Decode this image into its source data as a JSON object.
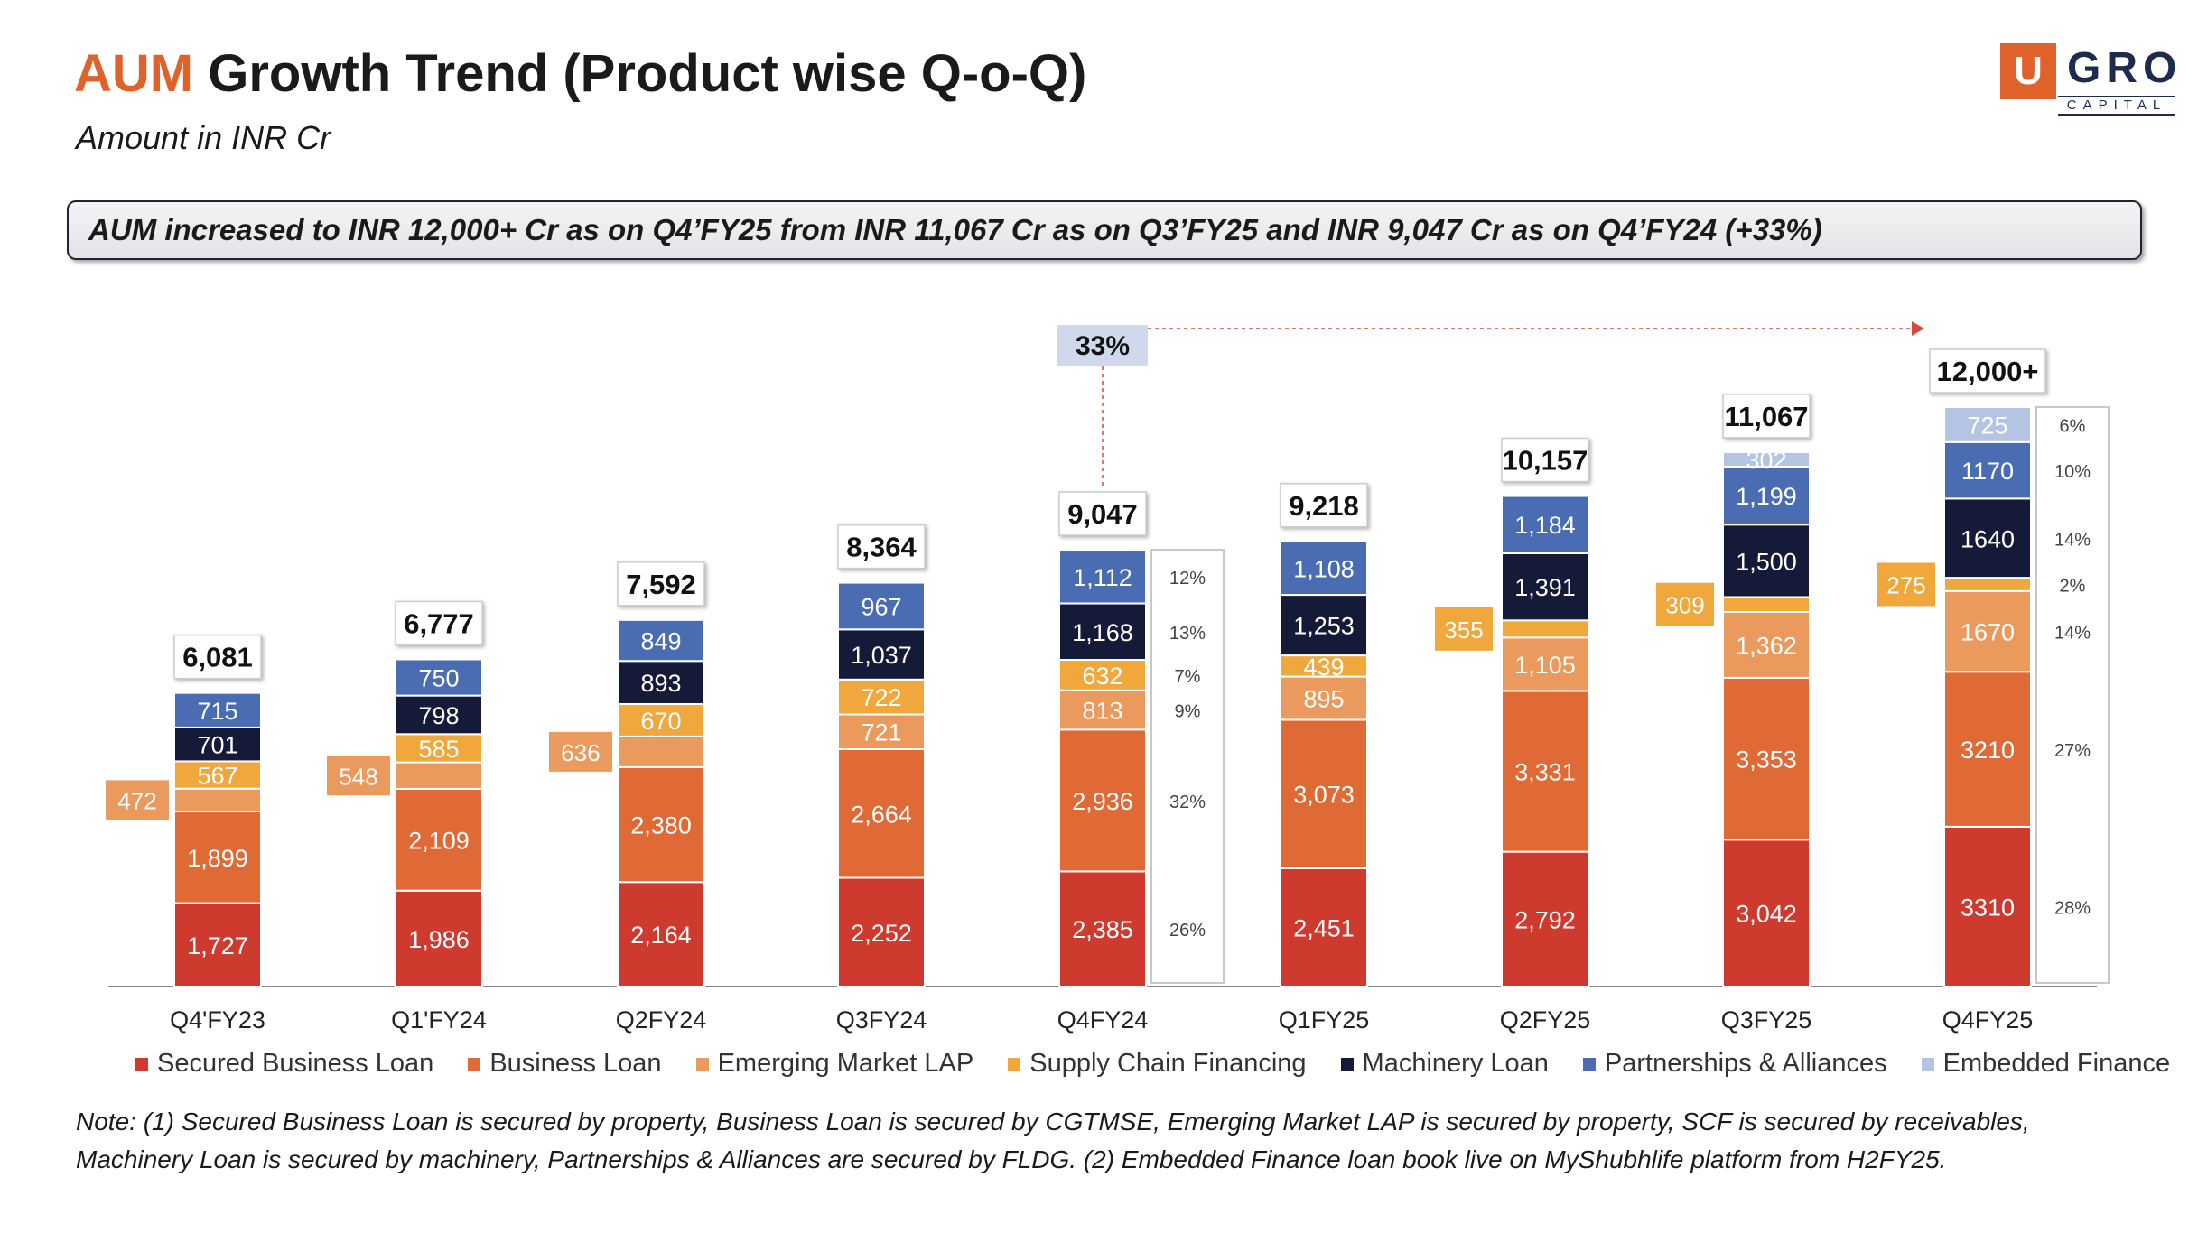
{
  "header": {
    "title_accent": "AUM",
    "title_rest": "Growth Trend (Product wise Q-o-Q)",
    "subtitle": "Amount in INR Cr",
    "logo_letter": "U",
    "logo_word": "GRO",
    "logo_sub": "CAPITAL",
    "highlight": "AUM increased to INR 12,000+ Cr as on Q4’FY25 from INR 11,067 Cr as on Q3’FY25 and INR 9,047 Cr as on Q4’FY24 (+33%)"
  },
  "note": "Note: (1) Secured Business Loan is secured by property, Business Loan is secured by CGTMSE, Emerging Market LAP is secured by property, SCF is secured by receivables, Machinery Loan is secured by machinery, Partnerships & Alliances are secured by FLDG. (2) Embedded Finance loan book live on MyShubhlife platform from H2FY25.",
  "colors": {
    "secured_business_loan": "#cf3a2f",
    "business_loan": "#e06a36",
    "emerging_market_lap": "#eb9a5e",
    "supply_chain_financing": "#f0a83c",
    "machinery_loan": "#151a38",
    "partnerships_alliances": "#4a6cb3",
    "embedded_finance": "#b3c5e3"
  },
  "chart_data": {
    "type": "bar",
    "stacked": true,
    "categories": [
      "Q4'FY23",
      "Q1'FY24",
      "Q2FY24",
      "Q3FY24",
      "Q4FY24",
      "Q1FY25",
      "Q2FY25",
      "Q3FY25",
      "Q4FY25"
    ],
    "series": [
      {
        "name": "Secured Business Loan",
        "values": [
          1727,
          1986,
          2164,
          2252,
          2385,
          2451,
          2792,
          3042,
          3310
        ],
        "labels": [
          "1,727",
          "1,986",
          "2,164",
          "2,252",
          "2,385",
          "2,451",
          "2,792",
          "3,042",
          "3310"
        ]
      },
      {
        "name": "Business Loan",
        "values": [
          1899,
          2109,
          2380,
          2664,
          2936,
          3073,
          3331,
          3353,
          3210
        ],
        "labels": [
          "1,899",
          "2,109",
          "2,380",
          "2,664",
          "2,936",
          "3,073",
          "3,331",
          "3,353",
          "3210"
        ]
      },
      {
        "name": "Emerging Market LAP",
        "values": [
          472,
          548,
          636,
          721,
          813,
          895,
          1105,
          1362,
          1670
        ],
        "labels": [
          "472",
          "548",
          "636",
          "721",
          "813",
          "895",
          "1,105",
          "1,362",
          "1670"
        ]
      },
      {
        "name": "Supply Chain Financing",
        "values": [
          567,
          585,
          670,
          722,
          632,
          439,
          355,
          309,
          275
        ],
        "labels": [
          "567",
          "585",
          "670",
          "722",
          "632",
          "439",
          "355",
          "309",
          "275"
        ]
      },
      {
        "name": "Machinery Loan",
        "values": [
          701,
          798,
          893,
          1037,
          1168,
          1253,
          1391,
          1500,
          1640
        ],
        "labels": [
          "701",
          "798",
          "893",
          "1,037",
          "1,168",
          "1,253",
          "1,391",
          "1,500",
          "1640"
        ]
      },
      {
        "name": "Partnerships & Alliances",
        "values": [
          715,
          750,
          849,
          967,
          1112,
          1108,
          1184,
          1199,
          1170
        ],
        "labels": [
          "715",
          "750",
          "849",
          "967",
          "1,112",
          "1,108",
          "1,184",
          "1,199",
          "1170"
        ]
      },
      {
        "name": "Embedded Finance",
        "values": [
          0,
          0,
          0,
          0,
          0,
          0,
          0,
          302,
          725
        ],
        "labels": [
          "",
          "",
          "",
          "",
          "",
          "",
          "",
          "302",
          "725"
        ]
      }
    ],
    "totals": [
      "6,081",
      "6,777",
      "7,592",
      "8,364",
      "9,047",
      "9,218",
      "10,157",
      "11,067",
      "12,000+"
    ],
    "growth_label": "33%",
    "share_boxes": [
      {
        "category": "Q4FY24",
        "values": [
          "26%",
          "32%",
          "9%",
          "7%",
          "13%",
          "12%"
        ]
      },
      {
        "category": "Q4FY25",
        "values": [
          "28%",
          "27%",
          "14%",
          "2%",
          "14%",
          "10%",
          "6%"
        ]
      }
    ],
    "ylim": [
      0,
      12600
    ]
  }
}
